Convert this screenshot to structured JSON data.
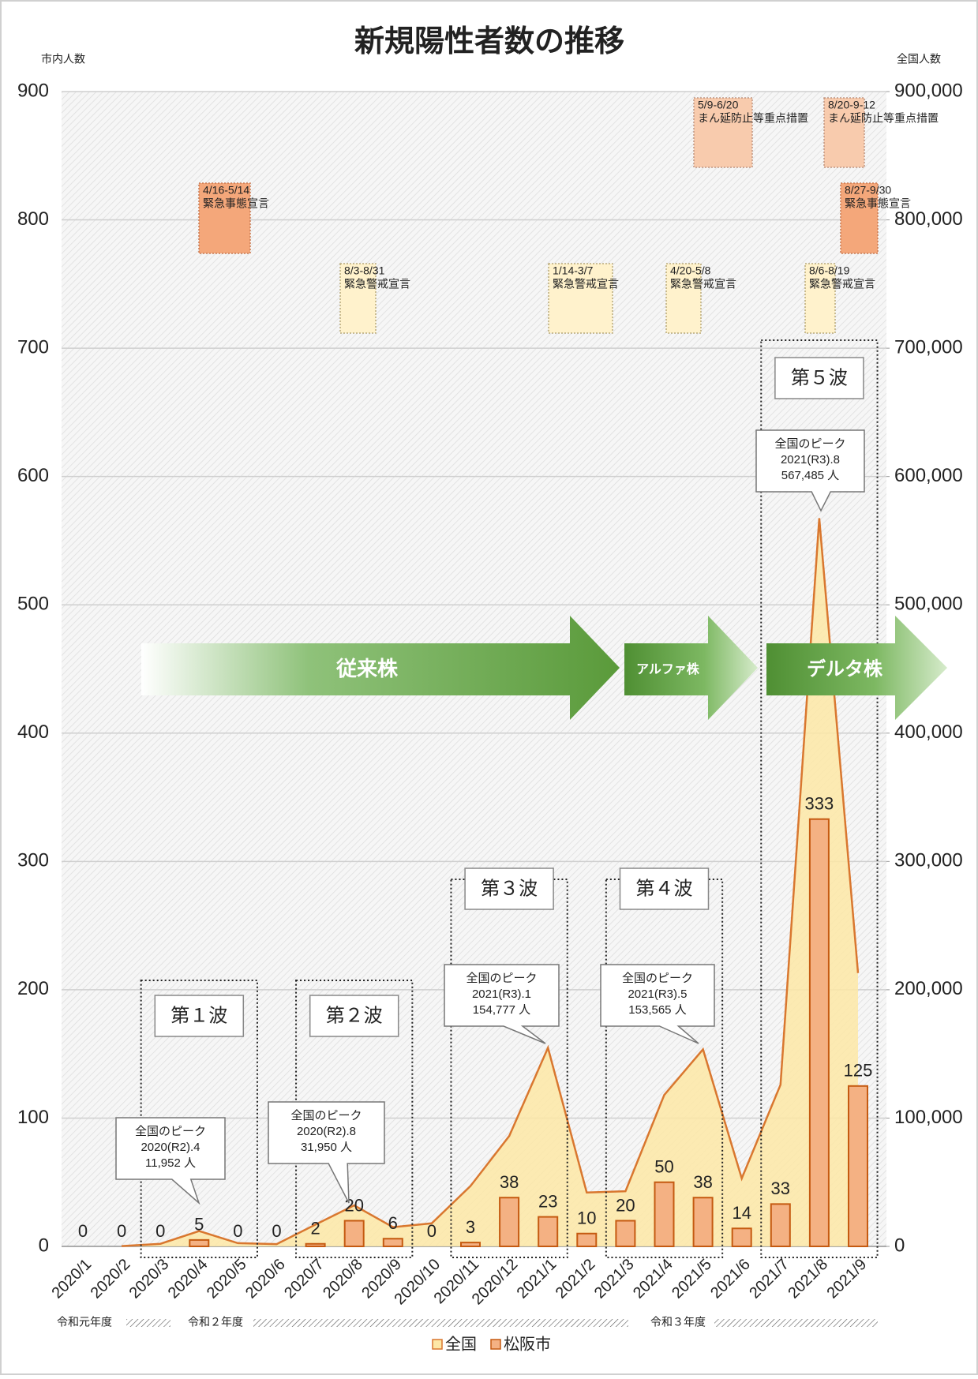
{
  "chart_data": {
    "type": "bar",
    "title": "新規陽性者数の推移",
    "y_label": "市内人数",
    "y2_label": "全国人数",
    "categories": [
      "2020/1",
      "2020/2",
      "2020/3",
      "2020/4",
      "2020/5",
      "2020/6",
      "2020/7",
      "2020/8",
      "2020/9",
      "2020/10",
      "2020/11",
      "2020/12",
      "2021/1",
      "2021/2",
      "2021/3",
      "2021/4",
      "2021/5",
      "2021/6",
      "2021/7",
      "2021/8",
      "2021/9"
    ],
    "series": [
      {
        "name": "全国",
        "type": "area",
        "axis": "y2",
        "color": "#fde7a6",
        "line_color": "#d9772f",
        "values": [
          null,
          200,
          2000,
          11952,
          2500,
          1800,
          17000,
          31950,
          15000,
          18000,
          47000,
          86000,
          154777,
          42000,
          43000,
          118000,
          153565,
          53000,
          126000,
          567485,
          213000
        ]
      },
      {
        "name": "松阪市",
        "type": "bar",
        "color": "#f4b183",
        "line_color": "#c55a11",
        "values": [
          0,
          0,
          0,
          5,
          0,
          0,
          2,
          20,
          6,
          0,
          3,
          38,
          23,
          10,
          20,
          50,
          38,
          14,
          33,
          333,
          125
        ]
      }
    ],
    "ylim": [
      0,
      900
    ],
    "yticks": [
      0,
      100,
      200,
      300,
      400,
      500,
      600,
      700,
      800,
      900
    ],
    "y2lim": [
      0,
      900000
    ],
    "y2ticks": [
      0,
      {
        "value": 100000,
        "label": "100,000"
      },
      {
        "value": 200000,
        "label": "200,000"
      },
      {
        "value": 300000,
        "label": "300,000"
      },
      {
        "value": 400000,
        "label": "400,000"
      },
      {
        "value": 500000,
        "label": "500,000"
      },
      {
        "value": 600000,
        "label": "600,000"
      },
      {
        "value": 700000,
        "label": "700,000"
      },
      {
        "value": 800000,
        "label": "800,000"
      },
      {
        "value": 900000,
        "label": "900,000"
      }
    ],
    "grid": true,
    "legend": "bottom",
    "waves": [
      "第１波",
      "第２波",
      "第３波",
      "第４波",
      "第５波"
    ],
    "peaks": [
      [
        "全国のピーク",
        "2020(R2).4",
        "11,952 人"
      ],
      [
        "全国のピーク",
        "2020(R2).8",
        "31,950 人"
      ],
      [
        "全国のピーク",
        "2021(R3).1",
        "154,777 人"
      ],
      [
        "全国のピーク",
        "2021(R3).5",
        "153,565 人"
      ],
      [
        "全国のピーク",
        "2021(R3).8",
        "567,485 人"
      ]
    ],
    "declarations": [
      {
        "dates": "4/16-5/14",
        "label": "緊急事態宣言"
      },
      {
        "dates": "8/3-8/31",
        "label": "緊急警戒宣言"
      },
      {
        "dates": "1/14-3/7",
        "label": "緊急警戒宣言"
      },
      {
        "dates": "4/20-5/8",
        "label": "緊急警戒宣言"
      },
      {
        "dates": "5/9-6/20",
        "label": "まん延防止等重点措置"
      },
      {
        "dates": "8/20-9-12",
        "label": "まん延防止等重点措置"
      },
      {
        "dates": "8/6-8/19",
        "label": "緊急警戒宣言"
      },
      {
        "dates": "8/27-9/30",
        "label": "緊急事態宣言"
      }
    ],
    "strains": [
      "従来株",
      "アルファ株",
      "デルタ株"
    ],
    "fiscal_years": [
      "令和元年度",
      "令和２年度",
      "令和３年度"
    ]
  }
}
